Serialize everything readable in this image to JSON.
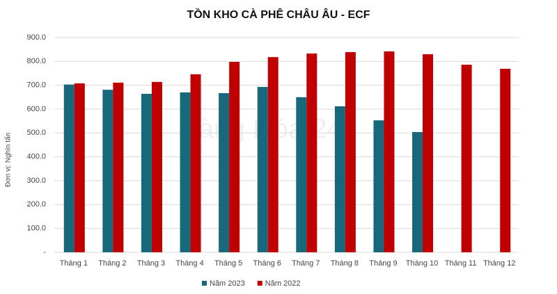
{
  "chart_data": {
    "type": "bar",
    "title": "TỒN KHO CÀ PHÊ CHÂU ÂU - ECF",
    "y_label": "Đơn vị: Nghìn tấn",
    "watermark": "Hàng Hóa 247",
    "categories": [
      "Tháng 1",
      "Tháng 2",
      "Tháng 3",
      "Tháng 4",
      "Tháng 5",
      "Tháng 6",
      "Tháng 7",
      "Tháng 8",
      "Tháng 9",
      "Tháng 10",
      "Tháng 11",
      "Tháng 12"
    ],
    "series": [
      {
        "name": "Năm 2023",
        "color": "#16687a",
        "values": [
          703,
          681,
          664,
          670,
          667,
          693,
          650,
          612,
          553,
          504,
          null,
          null
        ]
      },
      {
        "name": "Năm 2022",
        "color": "#c00000",
        "values": [
          708,
          711,
          714,
          746,
          798,
          818,
          833,
          839,
          842,
          830,
          786,
          769
        ]
      }
    ],
    "ylim": [
      0,
      900
    ],
    "yticks": [
      {
        "value": 0,
        "label": "-"
      },
      {
        "value": 100,
        "label": "100.0"
      },
      {
        "value": 200,
        "label": "200.0"
      },
      {
        "value": 300,
        "label": "300.0"
      },
      {
        "value": 400,
        "label": "400.0"
      },
      {
        "value": 500,
        "label": "500.0"
      },
      {
        "value": 600,
        "label": "600.0"
      },
      {
        "value": 700,
        "label": "700.0"
      },
      {
        "value": 800,
        "label": "800.0"
      },
      {
        "value": 900,
        "label": "900.0"
      }
    ],
    "grid": true,
    "legend": "bottom"
  }
}
